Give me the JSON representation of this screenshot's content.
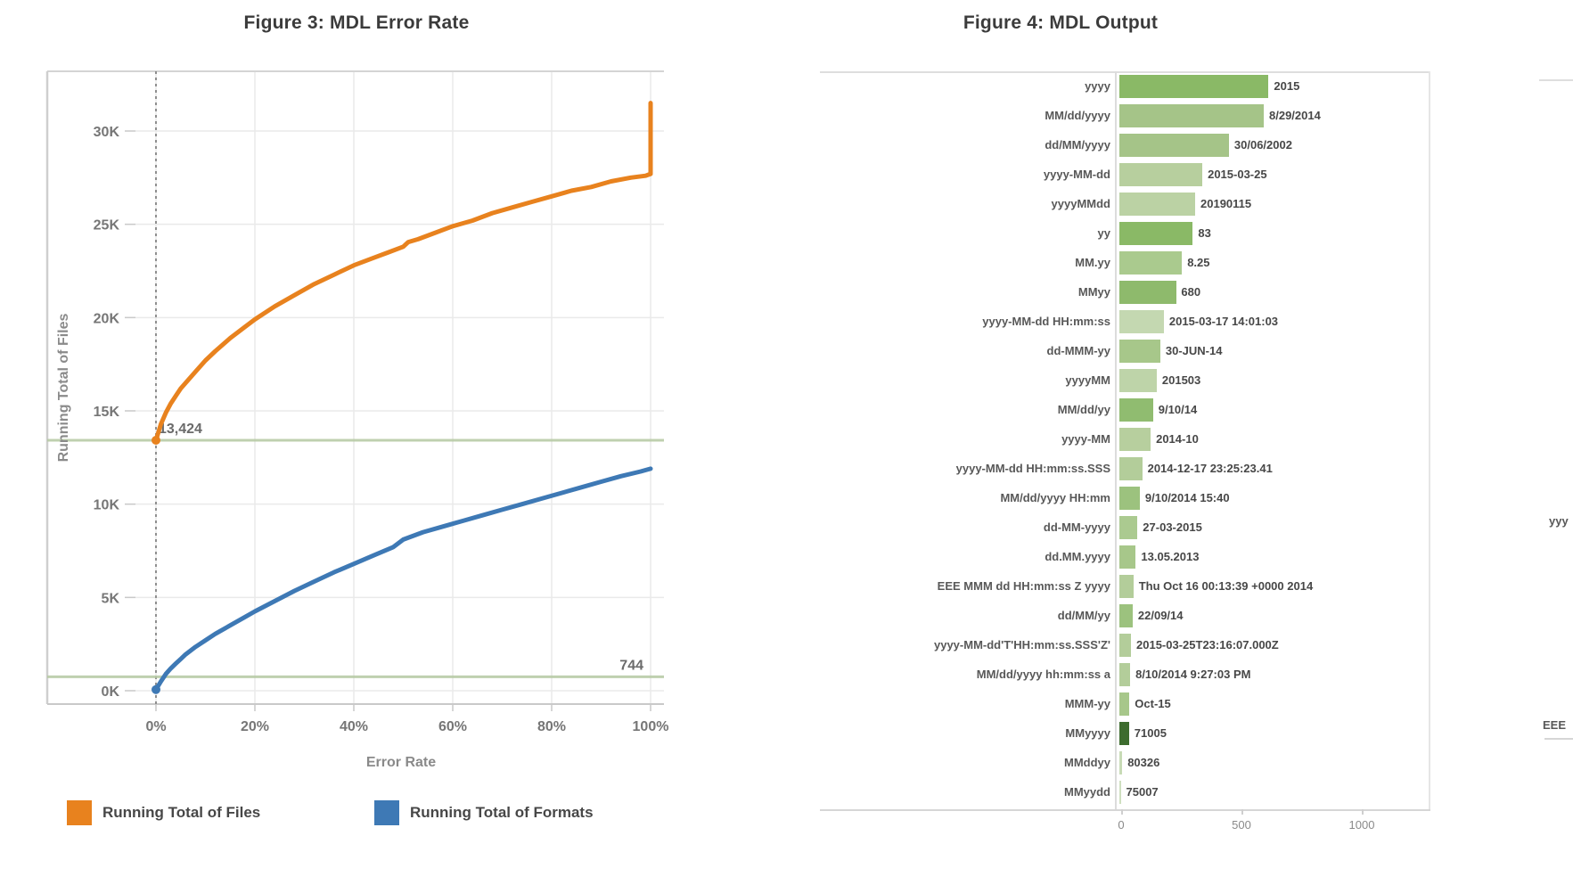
{
  "figure3": {
    "title": "Figure 3: MDL Error Rate",
    "x_axis_label": "Error Rate",
    "y_axis_label": "Running Total of Files",
    "annotations": {
      "files_start": "13,424",
      "formats_start": "744"
    },
    "legend": [
      {
        "label": "Running Total of Files",
        "color": "#e8821e"
      },
      {
        "label": "Running Total of Formats",
        "color": "#3e79b5"
      }
    ]
  },
  "figure4": {
    "title": "Figure 4: MDL Output"
  },
  "fragment": {
    "top_label": "yyy",
    "bottom_label": "EEE"
  },
  "colors": {
    "grid": "#eaeaea",
    "axis": "#c9c9c9",
    "reference_line_green": "#b5c8a2",
    "dotted_guide": "#8f8f8f",
    "bar_dark_green": "#3d6c2e",
    "bar_medium_green": "#8ab966",
    "bar_light_green": "#b3cd9a"
  },
  "chart_data": [
    {
      "type": "line",
      "title": "Figure 3: MDL Error Rate",
      "xlabel": "Error Rate",
      "ylabel": "Running Total of Files",
      "x_tick_labels": [
        "0%",
        "20%",
        "40%",
        "60%",
        "80%",
        "100%"
      ],
      "x_ticks_pct": [
        0,
        20,
        40,
        60,
        80,
        100
      ],
      "y_tick_labels": [
        "0K",
        "5K",
        "10K",
        "15K",
        "20K",
        "25K",
        "30K"
      ],
      "y_ticks": [
        0,
        5000,
        10000,
        15000,
        20000,
        25000,
        30000
      ],
      "ylim": [
        0,
        32500
      ],
      "grid": true,
      "legend_position": "bottom",
      "reference_lines": [
        {
          "value": 13424,
          "label": "13,424",
          "label_anchor": "left"
        },
        {
          "value": 744,
          "label": "744",
          "label_anchor": "right"
        }
      ],
      "series": [
        {
          "name": "Running Total of Files",
          "color": "#e8821e",
          "x": [
            0,
            1,
            2,
            3,
            4,
            5,
            6,
            8,
            10,
            12,
            15,
            18,
            20,
            24,
            28,
            32,
            36,
            40,
            44,
            47,
            50,
            51,
            53,
            56,
            60,
            64,
            68,
            72,
            76,
            80,
            84,
            88,
            92,
            96,
            99,
            100,
            100
          ],
          "y": [
            13424,
            14300,
            14900,
            15400,
            15800,
            16200,
            16500,
            17100,
            17700,
            18200,
            18900,
            19500,
            19900,
            20600,
            21200,
            21800,
            22300,
            22800,
            23200,
            23500,
            23800,
            24050,
            24200,
            24500,
            24900,
            25200,
            25600,
            25900,
            26200,
            26500,
            26800,
            27000,
            27300,
            27500,
            27600,
            27700,
            31500
          ]
        },
        {
          "name": "Running Total of Formats",
          "color": "#3e79b5",
          "x": [
            0,
            1,
            2,
            3,
            4,
            5,
            6,
            8,
            10,
            12,
            15,
            18,
            20,
            24,
            28,
            32,
            36,
            40,
            44,
            48,
            50,
            54,
            58,
            62,
            66,
            70,
            74,
            78,
            82,
            86,
            90,
            94,
            98,
            100
          ],
          "y": [
            60,
            500,
            900,
            1200,
            1450,
            1700,
            1950,
            2350,
            2700,
            3050,
            3500,
            3950,
            4250,
            4800,
            5350,
            5850,
            6350,
            6800,
            7250,
            7700,
            8100,
            8500,
            8800,
            9100,
            9400,
            9700,
            10000,
            10300,
            10600,
            10900,
            11200,
            11500,
            11750,
            11900
          ]
        }
      ]
    },
    {
      "type": "bar",
      "orientation": "horizontal",
      "title": "Figure 4: MDL Output",
      "xlim": [
        0,
        1280
      ],
      "x_ticks": [
        0,
        500,
        1000
      ],
      "x_tick_labels": [
        "0",
        "500",
        "1000"
      ],
      "categories": [
        "yyyy",
        "MM/dd/yyyy",
        "dd/MM/yyyy",
        "yyyy-MM-dd",
        "yyyyMMdd",
        "yy",
        "MM.yy",
        "MMyy",
        "yyyy-MM-dd HH:mm:ss",
        "dd-MMM-yy",
        "yyyyMM",
        "MM/dd/yy",
        "yyyy-MM",
        "yyyy-MM-dd HH:mm:ss.SSS",
        "MM/dd/yyyy HH:mm",
        "dd-MM-yyyy",
        "dd.MM.yyyy",
        "EEE MMM dd HH:mm:ss Z yyyy",
        "dd/MM/yy",
        "yyyy-MM-dd'T'HH:mm:ss.SSS'Z'",
        "MM/dd/yyyy hh:mm:ss a",
        "MMM-yy",
        "MMyyyy",
        "MMddyy",
        "MMyydd"
      ],
      "values": [
        620,
        600,
        455,
        345,
        315,
        305,
        260,
        235,
        185,
        170,
        155,
        140,
        130,
        95,
        85,
        75,
        68,
        58,
        55,
        48,
        45,
        42,
        40,
        12,
        3
      ],
      "bar_labels": [
        "2015",
        "8/29/2014",
        "30/06/2002",
        "2015-03-25",
        "20190115",
        "83",
        "8.25",
        "680",
        "2015-03-17 14:01:03",
        "30-JUN-14",
        "201503",
        "9/10/14",
        "2014-10",
        "2014-12-17 23:25:23.41",
        "9/10/2014 15:40",
        "27-03-2015",
        "13.05.2013",
        "Thu Oct 16 00:13:39 +0000 2014",
        "22/09/14",
        "2015-03-25T23:16:07.000Z",
        "8/10/2014 9:27:03 PM",
        "Oct-15",
        "71005",
        "80326",
        "75007"
      ],
      "colors": [
        "#8ab966",
        "#a5c488",
        "#a5c488",
        "#b7cf9e",
        "#bbd2a4",
        "#8ab966",
        "#aaca8e",
        "#8eba6c",
        "#c4d8b1",
        "#a7c78a",
        "#bed4a9",
        "#90bc70",
        "#b7cf9e",
        "#b3cd9a",
        "#9cc27e",
        "#abca90",
        "#a7c78a",
        "#b3cd9a",
        "#9cc27e",
        "#b3cd9a",
        "#b3cd9a",
        "#a7c78a",
        "#3d6c2e",
        "#c8dbb6",
        "#cfe0c0"
      ]
    }
  ]
}
